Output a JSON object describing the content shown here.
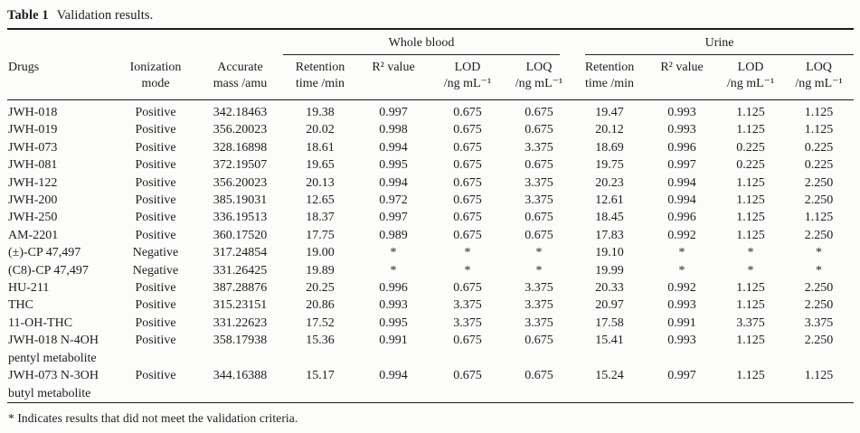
{
  "title": {
    "label": "Table 1",
    "caption": "Validation results."
  },
  "table": {
    "groups": [
      {
        "label": "Whole blood"
      },
      {
        "label": "Urine"
      }
    ],
    "columns": [
      {
        "label": "Drugs"
      },
      {
        "label": "Ionization\nmode"
      },
      {
        "label": "Accurate\nmass /amu"
      },
      {
        "label": "Retention\ntime /min"
      },
      {
        "label": "R² value"
      },
      {
        "label": "LOD\n/ng mL⁻¹"
      },
      {
        "label": "LOQ\n/ng mL⁻¹"
      },
      {
        "label": "Retention\ntime /min"
      },
      {
        "label": "R² value"
      },
      {
        "label": "LOD\n/ng mL⁻¹"
      },
      {
        "label": "LOQ\n/ng mL⁻¹"
      }
    ],
    "rows": [
      {
        "drug": "JWH-018",
        "ionization": "Positive",
        "accurate_mass": "342.18463",
        "whole_blood": {
          "retention_time": "19.38",
          "r2": "0.997",
          "lod": "0.675",
          "loq": "0.675"
        },
        "urine": {
          "retention_time": "19.47",
          "r2": "0.993",
          "lod": "1.125",
          "loq": "1.125"
        }
      },
      {
        "drug": "JWH-019",
        "ionization": "Positive",
        "accurate_mass": "356.20023",
        "whole_blood": {
          "retention_time": "20.02",
          "r2": "0.998",
          "lod": "0.675",
          "loq": "0.675"
        },
        "urine": {
          "retention_time": "20.12",
          "r2": "0.993",
          "lod": "1.125",
          "loq": "1.125"
        }
      },
      {
        "drug": "JWH-073",
        "ionization": "Positive",
        "accurate_mass": "328.16898",
        "whole_blood": {
          "retention_time": "18.61",
          "r2": "0.994",
          "lod": "0.675",
          "loq": "3.375"
        },
        "urine": {
          "retention_time": "18.69",
          "r2": "0.996",
          "lod": "0.225",
          "loq": "0.225"
        }
      },
      {
        "drug": "JWH-081",
        "ionization": "Positive",
        "accurate_mass": "372.19507",
        "whole_blood": {
          "retention_time": "19.65",
          "r2": "0.995",
          "lod": "0.675",
          "loq": "0.675"
        },
        "urine": {
          "retention_time": "19.75",
          "r2": "0.997",
          "lod": "0.225",
          "loq": "0.225"
        }
      },
      {
        "drug": "JWH-122",
        "ionization": "Positive",
        "accurate_mass": "356.20023",
        "whole_blood": {
          "retention_time": "20.13",
          "r2": "0.994",
          "lod": "0.675",
          "loq": "3.375"
        },
        "urine": {
          "retention_time": "20.23",
          "r2": "0.994",
          "lod": "1.125",
          "loq": "2.250"
        }
      },
      {
        "drug": "JWH-200",
        "ionization": "Positive",
        "accurate_mass": "385.19031",
        "whole_blood": {
          "retention_time": "12.65",
          "r2": "0.972",
          "lod": "0.675",
          "loq": "3.375"
        },
        "urine": {
          "retention_time": "12.61",
          "r2": "0.994",
          "lod": "1.125",
          "loq": "2.250"
        }
      },
      {
        "drug": "JWH-250",
        "ionization": "Positive",
        "accurate_mass": "336.19513",
        "whole_blood": {
          "retention_time": "18.37",
          "r2": "0.997",
          "lod": "0.675",
          "loq": "0.675"
        },
        "urine": {
          "retention_time": "18.45",
          "r2": "0.996",
          "lod": "1.125",
          "loq": "1.125"
        }
      },
      {
        "drug": "AM-2201",
        "ionization": "Positive",
        "accurate_mass": "360.17520",
        "whole_blood": {
          "retention_time": "17.75",
          "r2": "0.989",
          "lod": "0.675",
          "loq": "0.675"
        },
        "urine": {
          "retention_time": "17.83",
          "r2": "0.992",
          "lod": "1.125",
          "loq": "2.250"
        }
      },
      {
        "drug": "(±)-CP 47,497",
        "ionization": "Negative",
        "accurate_mass": "317.24854",
        "whole_blood": {
          "retention_time": "19.00",
          "r2": "*",
          "lod": "*",
          "loq": "*"
        },
        "urine": {
          "retention_time": "19.10",
          "r2": "*",
          "lod": "*",
          "loq": "*"
        }
      },
      {
        "drug": "(C8)-CP 47,497",
        "ionization": "Negative",
        "accurate_mass": "331.26425",
        "whole_blood": {
          "retention_time": "19.89",
          "r2": "*",
          "lod": "*",
          "loq": "*"
        },
        "urine": {
          "retention_time": "19.99",
          "r2": "*",
          "lod": "*",
          "loq": "*"
        }
      },
      {
        "drug": "HU-211",
        "ionization": "Positive",
        "accurate_mass": "387.28876",
        "whole_blood": {
          "retention_time": "20.25",
          "r2": "0.996",
          "lod": "0.675",
          "loq": "3.375"
        },
        "urine": {
          "retention_time": "20.33",
          "r2": "0.992",
          "lod": "1.125",
          "loq": "2.250"
        }
      },
      {
        "drug": "THC",
        "ionization": "Positive",
        "accurate_mass": "315.23151",
        "whole_blood": {
          "retention_time": "20.86",
          "r2": "0.993",
          "lod": "3.375",
          "loq": "3.375"
        },
        "urine": {
          "retention_time": "20.97",
          "r2": "0.993",
          "lod": "1.125",
          "loq": "2.250"
        }
      },
      {
        "drug": "11-OH-THC",
        "ionization": "Positive",
        "accurate_mass": "331.22623",
        "whole_blood": {
          "retention_time": "17.52",
          "r2": "0.995",
          "lod": "3.375",
          "loq": "3.375"
        },
        "urine": {
          "retention_time": "17.58",
          "r2": "0.991",
          "lod": "3.375",
          "loq": "3.375"
        }
      },
      {
        "drug": "JWH-018 N-4OH\npentyl metabolite",
        "ionization": "Positive",
        "accurate_mass": "358.17938",
        "whole_blood": {
          "retention_time": "15.36",
          "r2": "0.991",
          "lod": "0.675",
          "loq": "0.675"
        },
        "urine": {
          "retention_time": "15.41",
          "r2": "0.993",
          "lod": "1.125",
          "loq": "2.250"
        }
      },
      {
        "drug": "JWH-073 N-3OH\nbutyl metabolite",
        "ionization": "Positive",
        "accurate_mass": "344.16388",
        "whole_blood": {
          "retention_time": "15.17",
          "r2": "0.994",
          "lod": "0.675",
          "loq": "0.675"
        },
        "urine": {
          "retention_time": "15.24",
          "r2": "0.997",
          "lod": "1.125",
          "loq": "1.125"
        }
      }
    ],
    "footnote": "* Indicates results that did not meet the validation criteria."
  }
}
